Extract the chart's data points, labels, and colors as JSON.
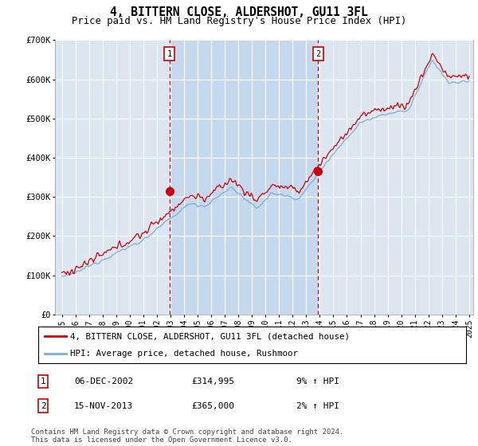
{
  "title": "4, BITTERN CLOSE, ALDERSHOT, GU11 3FL",
  "subtitle": "Price paid vs. HM Land Registry's House Price Index (HPI)",
  "ylim": [
    0,
    700000
  ],
  "yticks": [
    0,
    100000,
    200000,
    300000,
    400000,
    500000,
    600000,
    700000
  ],
  "ytick_labels": [
    "£0",
    "£100K",
    "£200K",
    "£300K",
    "£400K",
    "£500K",
    "£600K",
    "£700K"
  ],
  "xlim_start": 1995,
  "xlim_end": 2025,
  "background_color": "#ffffff",
  "plot_bg_color": "#dce6f1",
  "highlight_bg_color": "#c5d8ee",
  "grid_color": "#ffffff",
  "red_line_color": "#cc0000",
  "blue_line_color": "#7bafd4",
  "marker1_date": 2002.92,
  "marker1_value": 314995,
  "marker2_date": 2013.88,
  "marker2_value": 365000,
  "legend_label_red": "4, BITTERN CLOSE, ALDERSHOT, GU11 3FL (detached house)",
  "legend_label_blue": "HPI: Average price, detached house, Rushmoor",
  "annotation1_num": "1",
  "annotation1_date": "06-DEC-2002",
  "annotation1_price": "£314,995",
  "annotation1_hpi": "9% ↑ HPI",
  "annotation2_num": "2",
  "annotation2_date": "15-NOV-2013",
  "annotation2_price": "£365,000",
  "annotation2_hpi": "2% ↑ HPI",
  "footnote": "Contains HM Land Registry data © Crown copyright and database right 2024.\nThis data is licensed under the Open Government Licence v3.0."
}
